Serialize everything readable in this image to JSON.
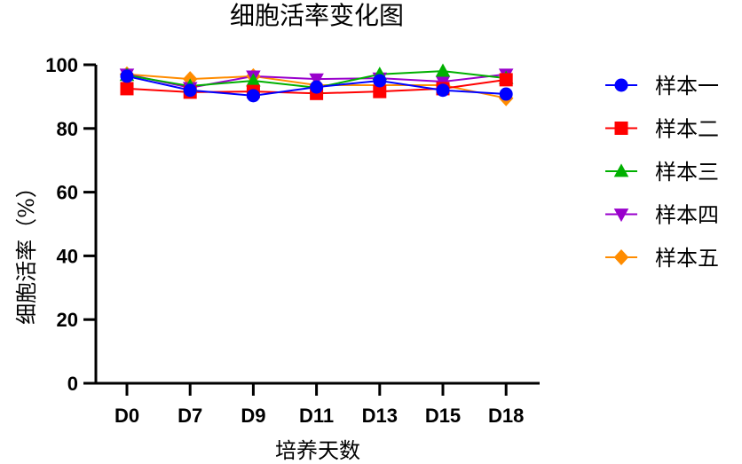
{
  "chart_data": {
    "type": "line",
    "title": "细胞活率变化图",
    "xlabel": "培养天数",
    "ylabel": "细胞活率（%）",
    "ylim": [
      0,
      100
    ],
    "yticks": [
      0,
      20,
      40,
      60,
      80,
      100
    ],
    "grid": false,
    "legend_position": "right",
    "categories": [
      "D0",
      "D7",
      "D9",
      "D11",
      "D13",
      "D15",
      "D18"
    ],
    "series": [
      {
        "name": "样本一",
        "color": "#0000ff",
        "marker": "circle",
        "values": [
          96.4,
          92.0,
          90.3,
          93.0,
          95.0,
          92.0,
          90.8
        ]
      },
      {
        "name": "样本二",
        "color": "#ff0000",
        "marker": "square",
        "values": [
          92.5,
          91.4,
          91.6,
          91.0,
          91.6,
          92.5,
          95.3
        ]
      },
      {
        "name": "样本三",
        "color": "#00b000",
        "marker": "triangle-up",
        "values": [
          96.7,
          93.3,
          95.0,
          92.8,
          97.0,
          98.0,
          95.8
        ]
      },
      {
        "name": "样本四",
        "color": "#9900cc",
        "marker": "triangle-down",
        "values": [
          97.0,
          92.8,
          96.4,
          95.5,
          95.8,
          94.7,
          97.0
        ]
      },
      {
        "name": "样本五",
        "color": "#ff8c00",
        "marker": "diamond",
        "values": [
          97.0,
          95.5,
          96.4,
          93.6,
          93.6,
          93.6,
          89.5
        ]
      }
    ]
  }
}
